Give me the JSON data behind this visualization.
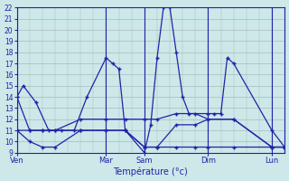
{
  "background_color": "#cce8e8",
  "grid_color": "#aabbbb",
  "line_color": "#2222aa",
  "xlabel": "Température (°c)",
  "ylim": [
    9,
    22
  ],
  "ytick_vals": [
    9,
    10,
    11,
    12,
    13,
    14,
    15,
    16,
    17,
    18,
    19,
    20,
    21,
    22
  ],
  "x_day_labels": [
    "Ven",
    "Mar",
    "Sam",
    "Dim",
    "Lun"
  ],
  "x_day_positions": [
    0,
    14,
    20,
    30,
    40
  ],
  "xlim": [
    0,
    42
  ],
  "line1_x": [
    0,
    1,
    3,
    5,
    7,
    9,
    11,
    14,
    15,
    16,
    17,
    20,
    21,
    22,
    23,
    24,
    25,
    26,
    27,
    30,
    31,
    32,
    33,
    34,
    40,
    42
  ],
  "line1_y": [
    14,
    15,
    13.5,
    11,
    11,
    11,
    14,
    17.5,
    17,
    16.5,
    11,
    9.0,
    11.5,
    17.5,
    22,
    22,
    18,
    14,
    12.5,
    12.5,
    12.5,
    12.5,
    17.5,
    17,
    11,
    9.5
  ],
  "line2_x": [
    0,
    2,
    4,
    6,
    10,
    14,
    17,
    20,
    22,
    25,
    28,
    30,
    34,
    40,
    42
  ],
  "line2_y": [
    11,
    10,
    9.5,
    9.5,
    11,
    11,
    11,
    9.5,
    9.5,
    11.5,
    11.5,
    12,
    12,
    9.5,
    9.5
  ],
  "line3_x": [
    0,
    2,
    4,
    6,
    10,
    14,
    17,
    20,
    22,
    25,
    28,
    30,
    34,
    40,
    42
  ],
  "line3_y": [
    11,
    11,
    11,
    11,
    11,
    11,
    11,
    9.5,
    9.5,
    9.5,
    9.5,
    9.5,
    9.5,
    9.5,
    9.5
  ],
  "line4_x": [
    0,
    2,
    4,
    6,
    10,
    14,
    17,
    20,
    22,
    25,
    28,
    30,
    34,
    40,
    42
  ],
  "line4_y": [
    14,
    11,
    11,
    11,
    12,
    12,
    12,
    12,
    12,
    12.5,
    12.5,
    12,
    12,
    9.5,
    9.5
  ]
}
